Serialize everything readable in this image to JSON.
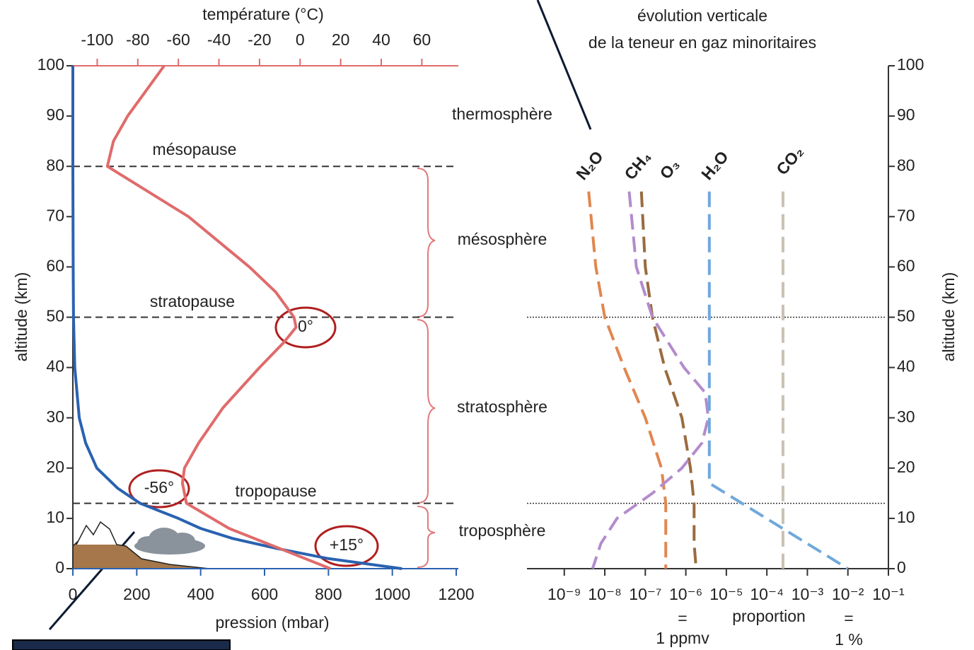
{
  "chart_data": [
    {
      "type": "line",
      "xlabel": "pression (mbar)",
      "x2label": "température (°C)",
      "ylabel": "altitude (km)",
      "ylim": [
        0,
        100
      ],
      "yticks": [
        0,
        10,
        20,
        30,
        40,
        50,
        60,
        70,
        80,
        90,
        100
      ],
      "xlim": [
        0,
        1200
      ],
      "xticks": [
        0,
        200,
        400,
        600,
        800,
        1000,
        1200
      ],
      "x2lim": [
        -112,
        78
      ],
      "x2ticks": [
        -100,
        -80,
        -60,
        -40,
        -20,
        0,
        20,
        40,
        60
      ],
      "series": [
        {
          "color": "#2a62b0",
          "x": [
            1030,
            800,
            640,
            500,
            400,
            330,
            210,
            140,
            75,
            40,
            20,
            6,
            2,
            1,
            0,
            0
          ],
          "values": [
            0,
            2,
            4,
            6,
            8,
            10,
            13,
            16,
            20,
            25,
            30,
            40,
            50,
            60,
            80,
            100
          ]
        },
        {
          "color": "#e06b6b",
          "axis": "x2",
          "x": [
            15,
            -10,
            -35,
            -56,
            -58,
            -57,
            -50,
            -38,
            -20,
            -8,
            -2,
            -3,
            -12,
            -25,
            -55,
            -95,
            -92,
            -85,
            -76,
            -67
          ],
          "values": [
            0,
            4,
            8,
            13,
            17,
            20,
            25,
            32,
            40,
            45,
            48,
            50,
            55,
            60,
            70,
            80,
            85,
            90,
            95,
            100
          ]
        }
      ],
      "levels": [
        {
          "name": "mésopause",
          "value": 80
        },
        {
          "name": "stratopause",
          "value": 50
        },
        {
          "name": "tropopause",
          "value": 13
        }
      ],
      "layers": [
        "thermosphère",
        "mésosphère",
        "stratosphère",
        "troposphère"
      ],
      "circled": [
        "0°",
        "-56°",
        "+15°"
      ]
    },
    {
      "type": "line",
      "log_x": true,
      "title": [
        "évolution verticale",
        "de la teneur en gaz minoritaires"
      ],
      "xlabel": "proportion",
      "ylabel": "altitude (km)",
      "ylim": [
        0,
        100
      ],
      "yticks": [
        0,
        10,
        20,
        30,
        40,
        50,
        60,
        70,
        80,
        90,
        100
      ],
      "xlim": [
        1.2e-10,
        0.1
      ],
      "xticks": [
        {
          "value": 1e-09,
          "label": "10⁻⁹"
        },
        {
          "value": 1e-08,
          "label": "10⁻⁸"
        },
        {
          "value": 1e-07,
          "label": "10⁻⁷"
        },
        {
          "value": 1e-06,
          "label": "10⁻⁶"
        },
        {
          "value": 1e-05,
          "label": "10⁻⁵"
        },
        {
          "value": 0.0001,
          "label": "10⁻⁴"
        },
        {
          "value": 0.001,
          "label": "10⁻³"
        },
        {
          "value": 0.01,
          "label": "10⁻²"
        },
        {
          "value": 0.1,
          "label": "10⁻¹"
        }
      ],
      "levels": [
        50,
        13
      ],
      "notes": [
        "1 ppmv",
        "1 %"
      ],
      "series": [
        {
          "name": "N₂O",
          "color": "#e0874f",
          "x": [
            4e-09,
            6e-09,
            1e-08,
            3e-08,
            1e-07,
            2.5e-07,
            3.2e-07,
            3.2e-07,
            3.2e-07
          ],
          "values": [
            75,
            60,
            50,
            40,
            30,
            20,
            13,
            5,
            0
          ]
        },
        {
          "name": "CH₄",
          "color": "#9a6b3f",
          "x": [
            8e-08,
            1e-07,
            1.5e-07,
            3e-07,
            8e-07,
            1.3e-06,
            1.6e-06,
            1.6e-06,
            1.8e-06
          ],
          "values": [
            75,
            60,
            50,
            40,
            30,
            20,
            13,
            5,
            0
          ]
        },
        {
          "name": "O₃",
          "color": "#b38ccc",
          "x": [
            4e-08,
            6e-08,
            1.5e-07,
            9e-07,
            3e-06,
            3.6e-06,
            2.5e-06,
            8e-07,
            1.5e-07,
            2e-08,
            8e-09,
            5e-09
          ],
          "values": [
            75,
            60,
            50,
            40,
            35,
            30,
            25,
            20,
            15,
            10,
            5,
            0
          ]
        },
        {
          "name": "H₂O",
          "color": "#6fa8dc",
          "x": [
            3.8e-06,
            3.8e-06,
            0.01
          ],
          "values": [
            75,
            17,
            0
          ]
        },
        {
          "name": "CO₂",
          "color": "#c9c1b5",
          "x": [
            0.00025,
            0.00025
          ],
          "values": [
            75,
            0
          ]
        }
      ]
    }
  ]
}
